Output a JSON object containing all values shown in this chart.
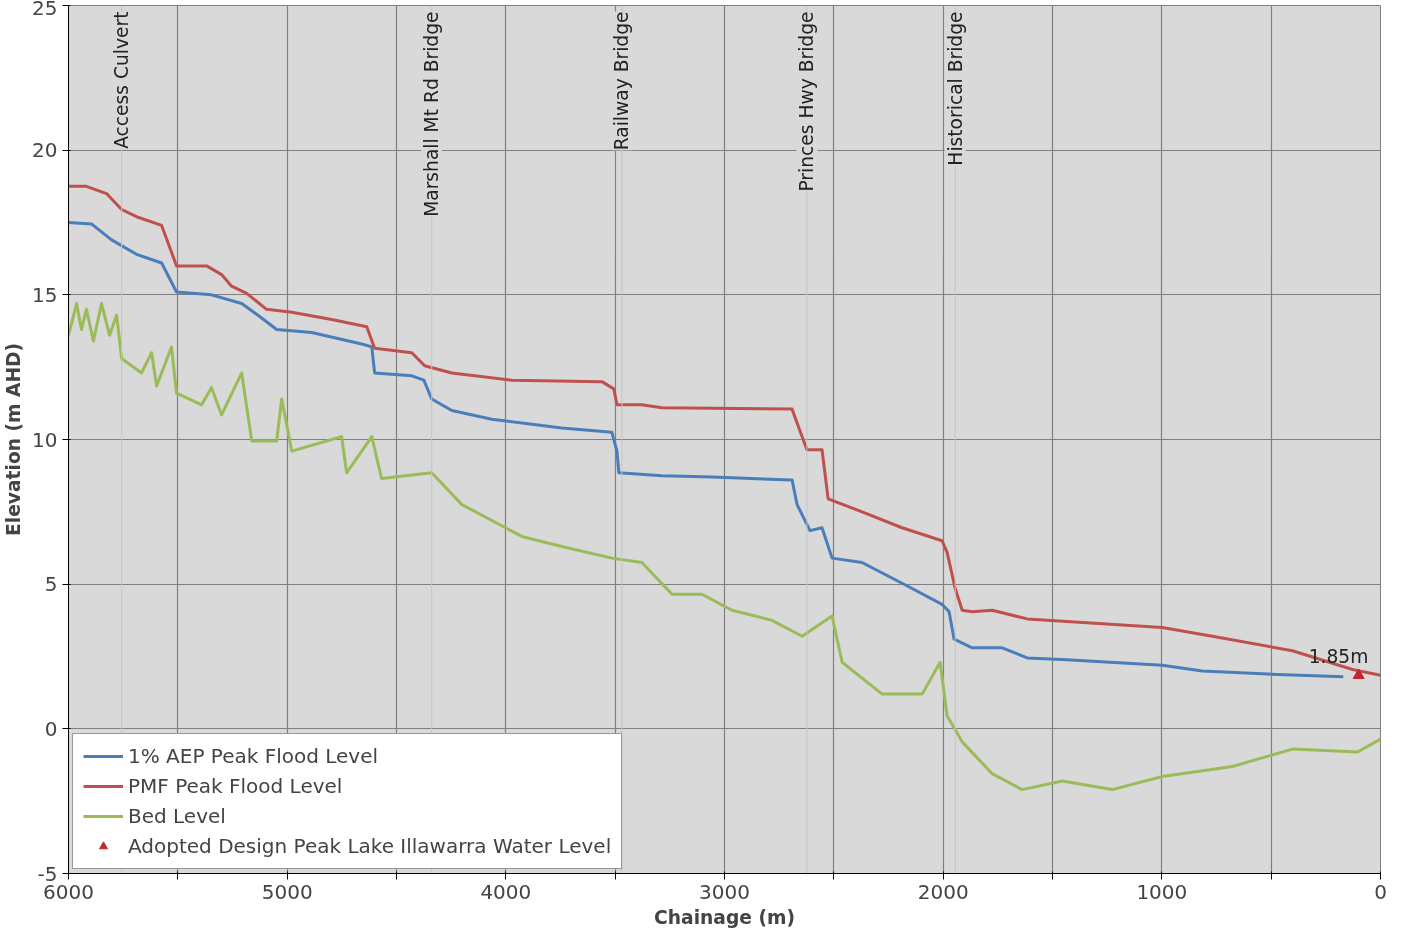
{
  "chart_data": {
    "type": "line",
    "xlabel": "Chainage (m)",
    "ylabel": "Elevation (m AHD)",
    "xlim": [
      6000,
      0
    ],
    "ylim": [
      -5,
      25
    ],
    "xticks": [
      6000,
      {
        "value": 5500,
        "label": null
      },
      5000,
      {
        "value": 4500,
        "label": null
      },
      4000,
      {
        "value": 3500,
        "label": null
      },
      3000,
      {
        "value": 2500,
        "label": null
      },
      2000,
      {
        "value": 1500,
        "label": null
      },
      1000,
      {
        "value": 500,
        "label": null
      },
      0
    ],
    "yticks": [
      -5,
      0,
      5,
      10,
      15,
      20,
      25
    ],
    "grid": true,
    "legend": "bottom left",
    "line_style": "solid",
    "marker": "none",
    "series": [
      {
        "name": "1% AEP Peak Flood Level",
        "color": "#4a7ebb",
        "x": [
          6000,
          5895,
          5803,
          5689,
          5574,
          5506,
          5346,
          5208,
          5117,
          5048,
          4888,
          4659,
          4613,
          4600,
          4430,
          4375,
          4339,
          4247,
          4064,
          3744,
          3515,
          3492,
          3483,
          3286,
          3057,
          2691,
          2668,
          2609,
          2554,
          2508,
          2371,
          2142,
          2005,
          1973,
          1950,
          1867,
          1730,
          1616,
          1455,
          998,
          815,
          540,
          170
        ],
        "values": [
          17.5,
          17.45,
          16.9,
          16.4,
          16.1,
          15.1,
          15.0,
          14.7,
          14.2,
          13.8,
          13.7,
          13.3,
          13.2,
          12.3,
          12.2,
          12.05,
          11.4,
          11.0,
          10.7,
          10.4,
          10.25,
          9.6,
          8.85,
          8.75,
          8.7,
          8.6,
          7.75,
          6.85,
          6.95,
          5.9,
          5.75,
          4.85,
          4.3,
          4.05,
          3.1,
          2.8,
          2.8,
          2.45,
          2.4,
          2.2,
          2.0,
          1.9,
          1.8
        ]
      },
      {
        "name": "PMF Peak Flood Level",
        "color": "#c0504d",
        "x": [
          6000,
          5918,
          5826,
          5757,
          5689,
          5574,
          5506,
          5368,
          5300,
          5254,
          5185,
          5094,
          4979,
          4796,
          4636,
          4600,
          4430,
          4371,
          4247,
          3973,
          3561,
          3506,
          3492,
          3378,
          3286,
          2691,
          2655,
          2623,
          2554,
          2526,
          2371,
          2188,
          2005,
          1982,
          1945,
          1913,
          1867,
          1776,
          1616,
          998,
          769,
          403,
          128,
          0
        ],
        "values": [
          18.75,
          18.75,
          18.5,
          17.95,
          17.7,
          17.4,
          16.0,
          16.0,
          15.7,
          15.3,
          15.05,
          14.5,
          14.4,
          14.15,
          13.9,
          13.15,
          13.0,
          12.55,
          12.3,
          12.05,
          12.0,
          11.75,
          11.2,
          11.2,
          11.1,
          11.05,
          10.3,
          9.65,
          9.65,
          7.95,
          7.5,
          6.95,
          6.5,
          6.1,
          4.85,
          4.1,
          4.05,
          4.1,
          3.8,
          3.5,
          3.2,
          2.7,
          2.05,
          1.85
        ]
      },
      {
        "name": "Bed Level",
        "color": "#9bbb59",
        "x": [
          6000,
          5963,
          5941,
          5918,
          5886,
          5849,
          5812,
          5780,
          5757,
          5666,
          5620,
          5597,
          5529,
          5506,
          5391,
          5346,
          5300,
          5208,
          5162,
          5048,
          5025,
          4979,
          4751,
          4728,
          4613,
          4568,
          4339,
          4201,
          4064,
          3927,
          3744,
          3515,
          3378,
          3240,
          3103,
          2966,
          2783,
          2645,
          2508,
          2462,
          2279,
          2096,
          2014,
          1982,
          1913,
          1776,
          1639,
          1455,
          1227,
          998,
          677,
          403,
          105,
          0
        ],
        "values": [
          13.6,
          14.7,
          13.8,
          14.5,
          13.4,
          14.7,
          13.6,
          14.3,
          12.8,
          12.3,
          13.0,
          11.85,
          13.2,
          11.6,
          11.2,
          11.8,
          10.85,
          12.3,
          9.95,
          9.95,
          11.4,
          9.6,
          10.1,
          8.85,
          10.1,
          8.65,
          8.85,
          7.75,
          7.2,
          6.65,
          6.3,
          5.9,
          5.75,
          4.65,
          4.65,
          4.1,
          3.75,
          3.2,
          3.9,
          2.3,
          1.2,
          1.2,
          2.3,
          0.45,
          -0.45,
          -1.55,
          -2.1,
          -1.8,
          -2.1,
          -1.65,
          -1.3,
          -0.7,
          -0.8,
          -0.35
        ]
      },
      {
        "name": "Adopted Design Peak Lake Illawarra Water Level",
        "type": "scatter",
        "marker": "triangle",
        "color": "#c0282d",
        "x": [
          100
        ],
        "values": [
          1.85
        ],
        "value_labels": [
          "1.85m"
        ]
      }
    ],
    "ref_lines": [
      {
        "axis": "x",
        "value": 5757,
        "label": "Access Culvert",
        "color": "#c4c4c4"
      },
      {
        "axis": "x",
        "value": 4339,
        "label": "Marshall Mt Rd Bridge",
        "color": "#c4c4c4"
      },
      {
        "axis": "x",
        "value": 3469,
        "label": "Railway Bridge",
        "color": "#c4c4c4"
      },
      {
        "axis": "x",
        "value": 2623,
        "label": "Princes Hwy Bridge",
        "color": "#c4c4c4"
      },
      {
        "axis": "x",
        "value": 1945,
        "label": "Historical Bridge",
        "color": "#c4c4c4"
      }
    ]
  }
}
